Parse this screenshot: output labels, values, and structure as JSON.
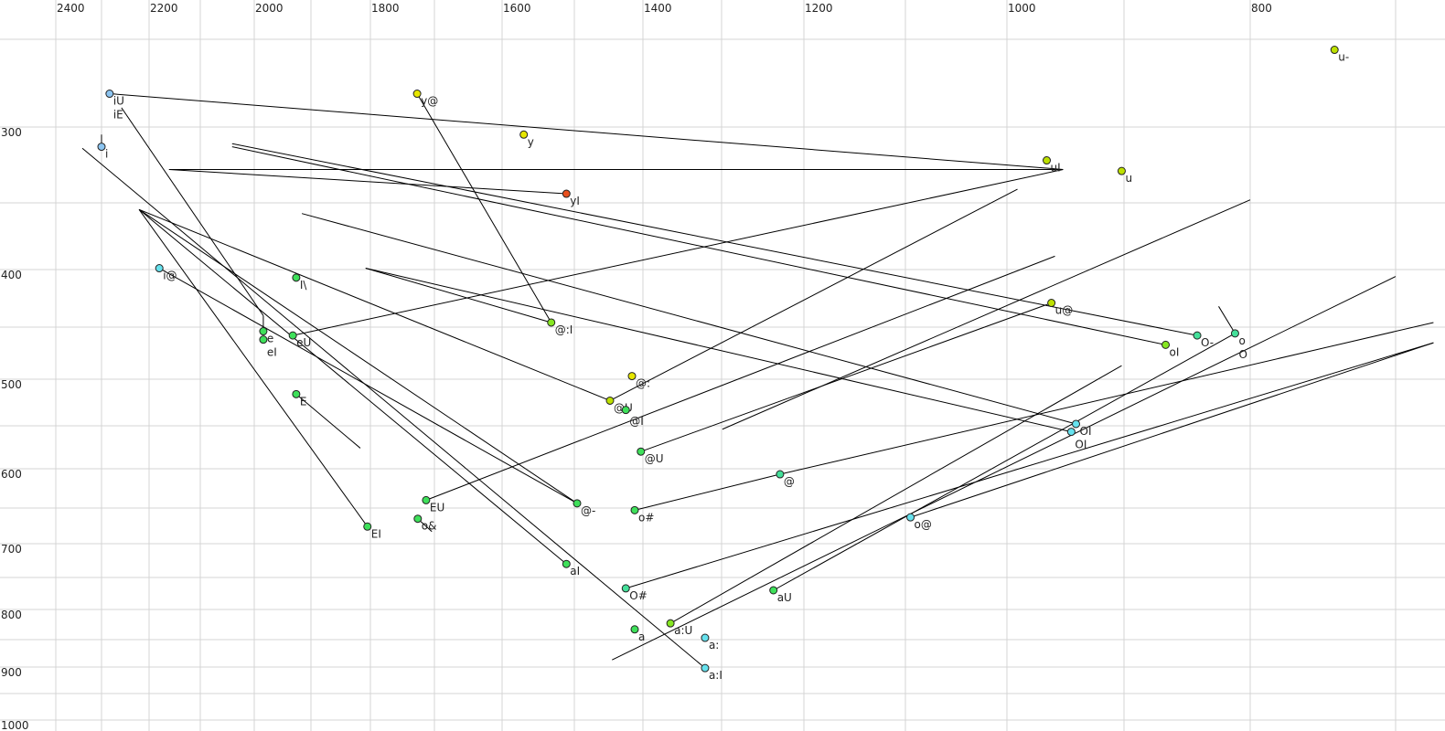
{
  "chart_data": {
    "type": "scatter",
    "title": "",
    "xlabel": "",
    "ylabel": "",
    "x_axis": {
      "reversed": true,
      "scale": "nonlinear (auditory)",
      "grid_values": [
        2400,
        2300,
        2200,
        2100,
        2000,
        1900,
        1800,
        1700,
        1600,
        1500,
        1400,
        1300,
        1200,
        1100,
        1000,
        900,
        800,
        700
      ],
      "tick_labels": [
        "2400",
        "2200",
        "2000",
        "1800",
        "1600",
        "1400",
        "1200",
        "1000",
        "800"
      ],
      "position": "top"
    },
    "y_axis": {
      "reversed": false,
      "scale": "nonlinear (auditory)",
      "grid_values": [
        250,
        300,
        350,
        400,
        450,
        500,
        550,
        600,
        650,
        700,
        750,
        800,
        850,
        900,
        950,
        1000
      ],
      "tick_labels": [
        "300",
        "400",
        "500",
        "600",
        "700",
        "800",
        "900",
        "1000"
      ],
      "position": "left"
    },
    "grid": true,
    "colors": {
      "lightblue": "#8cc4f0",
      "cyan": "#66e2ee",
      "green": "#3ee05a",
      "teal": "#44e09a",
      "yellow": "#e6e600",
      "yellowgreen": "#bde000",
      "lime": "#86e622",
      "orange": "#e8501e",
      "gray_label": "#777777"
    },
    "points": [
      {
        "label": "iU",
        "label2": "iE",
        "x": 2283,
        "y": 281,
        "color": "lightblue"
      },
      {
        "label": "i",
        "x": 2300,
        "y": 313,
        "color": "lightblue"
      },
      {
        "label": "y@",
        "x": 1727,
        "y": 281,
        "color": "yellow"
      },
      {
        "label": "y",
        "x": 1570,
        "y": 305,
        "color": "yellow"
      },
      {
        "label": "yI",
        "x": 1511,
        "y": 344,
        "color": "orange"
      },
      {
        "label": "uI",
        "x": 966,
        "y": 322,
        "color": "yellowgreen"
      },
      {
        "label": "u",
        "x": 902,
        "y": 329,
        "color": "yellowgreen"
      },
      {
        "label": "u-",
        "x": 742,
        "y": 256,
        "color": "yellowgreen"
      },
      {
        "label": "i@",
        "x": 2180,
        "y": 399,
        "color": "cyan"
      },
      {
        "label": "I\\",
        "x": 1926,
        "y": 407,
        "color": "green",
        "label_color": "gray_label"
      },
      {
        "label": "e",
        "x": 1984,
        "y": 454,
        "color": "green"
      },
      {
        "label": "eI",
        "x": 1984,
        "y": 462,
        "color": "green"
      },
      {
        "label": "eU",
        "x": 1932,
        "y": 458,
        "color": "green"
      },
      {
        "label": "E",
        "x": 1926,
        "y": 516,
        "color": "green"
      },
      {
        "label": "@:I",
        "x": 1532,
        "y": 446,
        "color": "lime"
      },
      {
        "label": "@:",
        "x": 1416,
        "y": 497,
        "color": "yellow"
      },
      {
        "label": "@U",
        "x": 1448,
        "y": 523,
        "color": "yellowgreen"
      },
      {
        "label": "@I",
        "x": 1425,
        "y": 533,
        "color": "green"
      },
      {
        "label": "@U",
        "x": 1403,
        "y": 580,
        "color": "green"
      },
      {
        "label": "u@",
        "x": 962,
        "y": 429,
        "color": "yellowgreen"
      },
      {
        "label": "O-",
        "x": 842,
        "y": 458,
        "color": "teal"
      },
      {
        "label": "o",
        "label2": "O",
        "x": 812,
        "y": 456,
        "color": "teal"
      },
      {
        "label": "oI",
        "x": 867,
        "y": 467,
        "color": "lime"
      },
      {
        "label": "OI",
        "x": 941,
        "y": 548,
        "color": "cyan"
      },
      {
        "label": "OI",
        "x": 945,
        "y": 557,
        "color": "cyan"
      },
      {
        "label": "@",
        "x": 1229,
        "y": 607,
        "color": "teal"
      },
      {
        "label": "o#",
        "x": 1412,
        "y": 653,
        "color": "green"
      },
      {
        "label": "@-",
        "x": 1496,
        "y": 644,
        "color": "green"
      },
      {
        "label": "EU",
        "x": 1713,
        "y": 640,
        "color": "green"
      },
      {
        "label": "o&",
        "x": 1726,
        "y": 665,
        "color": "green"
      },
      {
        "label": "EI",
        "x": 1805,
        "y": 676,
        "color": "green"
      },
      {
        "label": "aI",
        "x": 1511,
        "y": 730,
        "color": "green"
      },
      {
        "label": "O#",
        "x": 1425,
        "y": 767,
        "color": "teal"
      },
      {
        "label": "aU",
        "x": 1237,
        "y": 770,
        "color": "green"
      },
      {
        "label": "o@",
        "x": 1095,
        "y": 663,
        "color": "cyan"
      },
      {
        "label": "a",
        "x": 1412,
        "y": 833,
        "color": "green"
      },
      {
        "label": "a:U",
        "x": 1365,
        "y": 823,
        "color": "lime"
      },
      {
        "label": "a:",
        "x": 1321,
        "y": 847,
        "color": "cyan"
      },
      {
        "label": "a:I",
        "x": 1321,
        "y": 902,
        "color": "cyan"
      }
    ],
    "trajectories": [
      [
        [
          2283,
          281
        ],
        [
          952,
          328
        ]
      ],
      [
        [
          2258,
          289
        ],
        [
          1984,
          440
        ]
      ],
      [
        [
          2342,
          314
        ],
        [
          1321,
          902
        ]
      ],
      [
        [
          2221,
          355
        ],
        [
          1511,
          730
        ]
      ],
      [
        [
          2221,
          355
        ],
        [
          1496,
          644
        ]
      ],
      [
        [
          2221,
          355
        ],
        [
          1448,
          523
        ]
      ],
      [
        [
          2221,
          355
        ],
        [
          1805,
          676
        ]
      ],
      [
        [
          2161,
          328
        ],
        [
          952,
          328
        ]
      ],
      [
        [
          2161,
          328
        ],
        [
          1511,
          344
        ]
      ],
      [
        [
          2041,
          311
        ],
        [
          842,
          458
        ]
      ],
      [
        [
          2041,
          313
        ],
        [
          867,
          467
        ]
      ],
      [
        [
          1916,
          358
        ],
        [
          941,
          548
        ]
      ],
      [
        [
          1808,
          399
        ],
        [
          1532,
          446
        ]
      ],
      [
        [
          1808,
          399
        ],
        [
          945,
          557
        ]
      ],
      [
        [
          1727,
          281
        ],
        [
          1532,
          446
        ]
      ],
      [
        [
          2180,
          399
        ],
        [
          1496,
          644
        ]
      ],
      [
        [
          1932,
          458
        ],
        [
          952,
          328
        ]
      ],
      [
        [
          1926,
          516
        ],
        [
          1817,
          576
        ]
      ],
      [
        [
          1448,
          523
        ],
        [
          991,
          341
        ]
      ],
      [
        [
          1713,
          640
        ],
        [
          959,
          390
        ]
      ],
      [
        [
          1403,
          580
        ],
        [
          962,
          429
        ]
      ],
      [
        [
          1299,
          554
        ],
        [
          800,
          348
        ]
      ],
      [
        [
          1412,
          653
        ],
        [
          1229,
          607
        ]
      ],
      [
        [
          1229,
          607
        ],
        [
          677,
          446
        ]
      ],
      [
        [
          1425,
          767
        ],
        [
          677,
          465
        ]
      ],
      [
        [
          1237,
          770
        ],
        [
          812,
          456
        ]
      ],
      [
        [
          1095,
          663
        ],
        [
          677,
          465
        ]
      ],
      [
        [
          1365,
          823
        ],
        [
          902,
          487
        ]
      ],
      [
        [
          1445,
          887
        ],
        [
          700,
          406
        ]
      ],
      [
        [
          825,
          432
        ],
        [
          812,
          456
        ]
      ],
      [
        [
          1726,
          665
        ],
        [
          1704,
          683
        ]
      ],
      [
        [
          1984,
          440
        ],
        [
          1984,
          454
        ]
      ],
      [
        [
          2300,
          305
        ],
        [
          2300,
          313
        ]
      ]
    ]
  }
}
